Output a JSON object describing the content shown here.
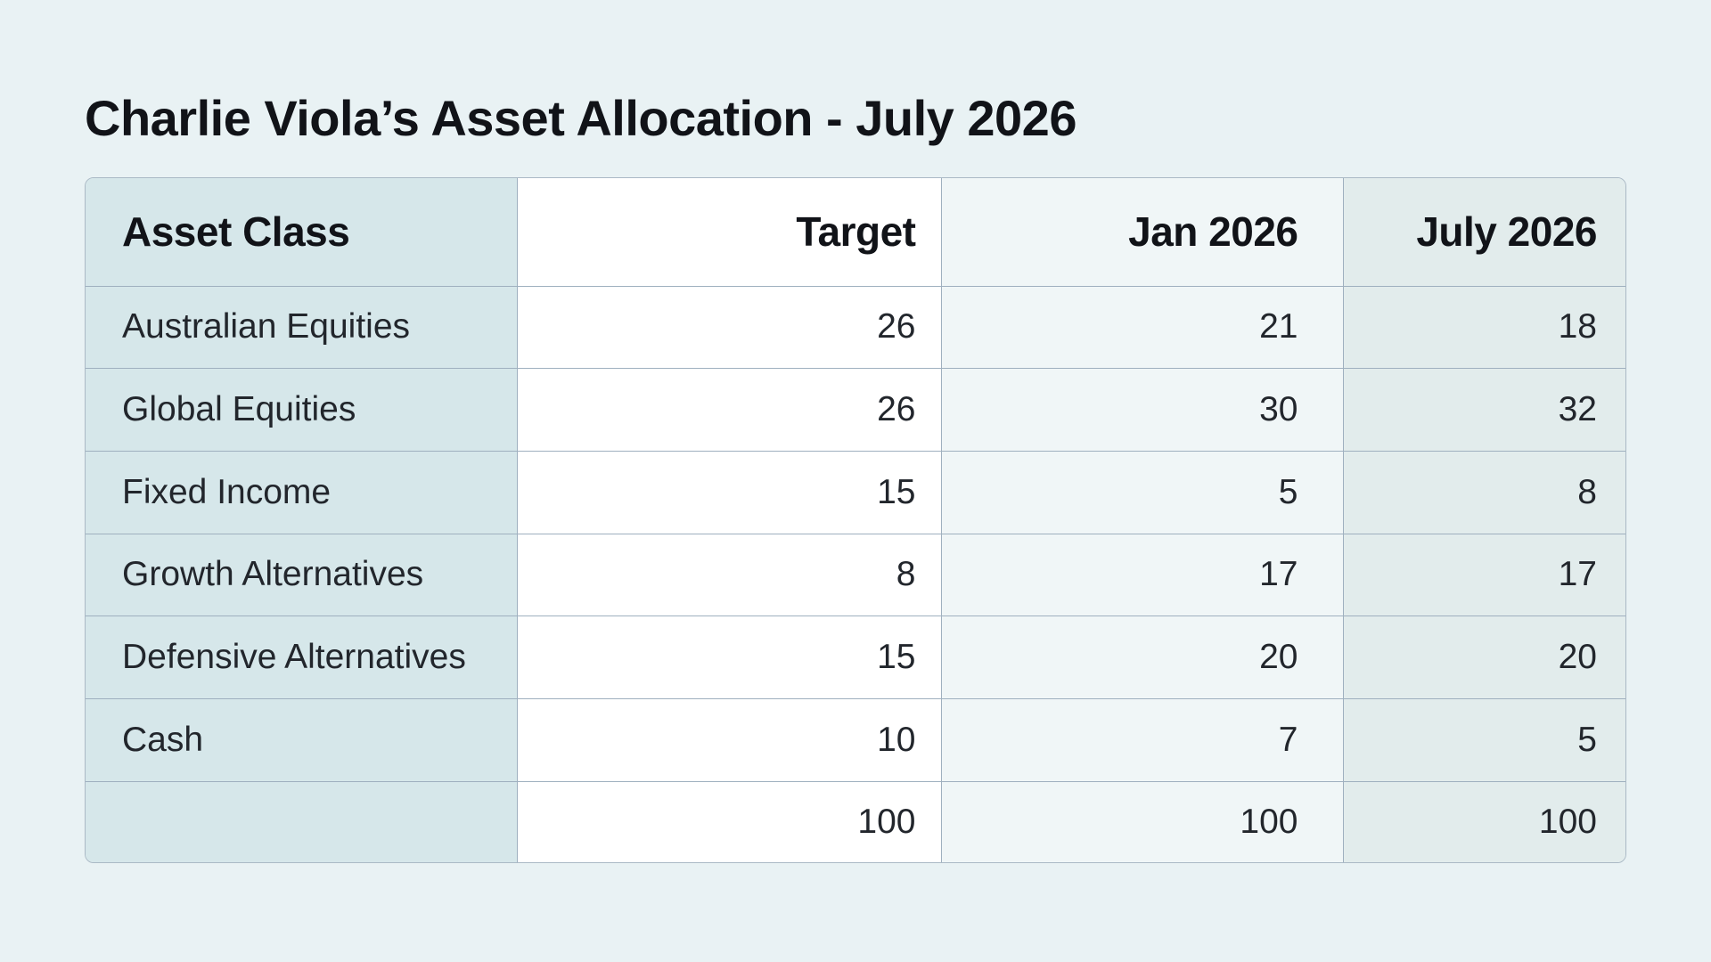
{
  "title": "Charlie Viola’s Asset Allocation - July 2026",
  "table": {
    "headers": {
      "asset_class": "Asset Class",
      "target": "Target",
      "jan": "Jan 2026",
      "jul": "July 2026"
    },
    "rows": [
      {
        "asset_class": "Australian Equities",
        "target": "26",
        "jan": "21",
        "jul": "18"
      },
      {
        "asset_class": "Global Equities",
        "target": "26",
        "jan": "30",
        "jul": "32"
      },
      {
        "asset_class": "Fixed Income",
        "target": "15",
        "jan": "5",
        "jul": "8"
      },
      {
        "asset_class": "Growth Alternatives",
        "target": "8",
        "jan": "17",
        "jul": "17"
      },
      {
        "asset_class": "Defensive Alternatives",
        "target": "15",
        "jan": "20",
        "jul": "20"
      },
      {
        "asset_class": "Cash",
        "target": "10",
        "jan": "7",
        "jul": "5"
      }
    ],
    "totals": {
      "asset_class": "",
      "target": "100",
      "jan": "100",
      "jul": "100"
    }
  },
  "colors": {
    "page_background": "#e9f2f4",
    "asset_class_column": "#d6e7ea",
    "target_column": "#ffffff",
    "jan_column": "#f0f6f7",
    "july_column": "#e2ecec",
    "grid_lines": "#9fb0bf"
  }
}
